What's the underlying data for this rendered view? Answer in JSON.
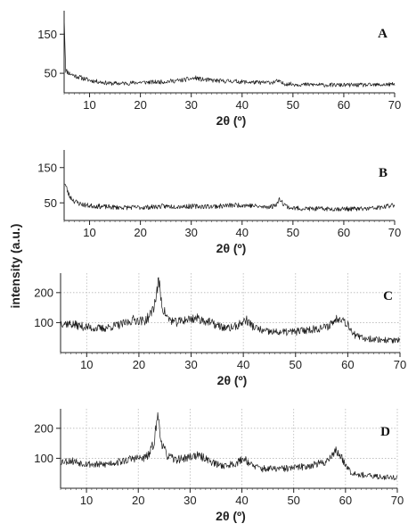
{
  "figure": {
    "ylabel": "intensity (a.u.)"
  },
  "chart_data": [
    {
      "panel": "A",
      "type": "line",
      "xlabel": "2θ (º)",
      "ylabel": "",
      "xlim": [
        5,
        70
      ],
      "ylim": [
        0,
        210
      ],
      "xticks": [
        10,
        20,
        30,
        40,
        50,
        60,
        70
      ],
      "yticks": [
        50,
        150
      ],
      "grid": false,
      "noise": 7,
      "seed": 11,
      "series": [
        {
          "x": [
            5,
            5.3,
            6,
            7,
            8,
            9,
            10,
            12,
            14,
            16,
            18,
            20,
            22,
            24,
            26,
            28,
            30,
            31,
            32,
            34,
            36,
            38,
            40,
            42,
            44,
            46,
            47,
            48,
            50,
            52,
            54,
            56,
            58,
            60,
            62,
            64,
            66,
            68,
            70
          ],
          "y": [
            200,
            58,
            50,
            44,
            40,
            36,
            32,
            28,
            24,
            24,
            25,
            27,
            27,
            28,
            30,
            32,
            36,
            38,
            34,
            32,
            30,
            30,
            28,
            27,
            26,
            27,
            30,
            24,
            22,
            21,
            21,
            20,
            20,
            20,
            20,
            20,
            20,
            21,
            22
          ]
        }
      ]
    },
    {
      "panel": "B",
      "type": "line",
      "xlabel": "2θ (º)",
      "ylabel": "",
      "xlim": [
        5,
        70
      ],
      "ylim": [
        0,
        200
      ],
      "xticks": [
        10,
        20,
        30,
        40,
        50,
        60,
        70
      ],
      "yticks": [
        50,
        150
      ],
      "grid": false,
      "noise": 8,
      "seed": 23,
      "series": [
        {
          "x": [
            5,
            5.5,
            6,
            7,
            8,
            9,
            10,
            12,
            14,
            16,
            18,
            20,
            22,
            24,
            26,
            28,
            30,
            32,
            34,
            36,
            38,
            40,
            42,
            44,
            46,
            47,
            47.5,
            48,
            49,
            50,
            52,
            54,
            56,
            58,
            60,
            62,
            64,
            66,
            68,
            70
          ],
          "y": [
            110,
            90,
            70,
            55,
            48,
            44,
            42,
            40,
            38,
            37,
            37,
            37,
            38,
            40,
            40,
            40,
            40,
            40,
            40,
            41,
            43,
            44,
            42,
            38,
            40,
            50,
            62,
            50,
            38,
            35,
            34,
            33,
            33,
            33,
            33,
            33,
            33,
            35,
            38,
            45
          ]
        }
      ]
    },
    {
      "panel": "C",
      "type": "line",
      "xlabel": "2θ (º)",
      "ylabel": "",
      "xlim": [
        5,
        70
      ],
      "ylim": [
        0,
        265
      ],
      "xticks": [
        10,
        20,
        30,
        40,
        50,
        60,
        70
      ],
      "yticks": [
        100,
        200
      ],
      "grid": true,
      "noise": 12,
      "seed": 37,
      "series": [
        {
          "x": [
            5,
            7,
            9,
            11,
            13,
            15,
            17,
            19,
            21,
            22,
            23,
            23.8,
            24.5,
            25.5,
            27,
            29,
            31,
            33,
            35,
            37,
            39,
            40.5,
            42,
            44,
            46,
            48,
            50,
            52,
            54,
            56,
            57,
            58.5,
            60,
            61.5,
            63,
            65,
            67,
            70
          ],
          "y": [
            100,
            95,
            88,
            82,
            80,
            88,
            95,
            110,
            105,
            120,
            160,
            240,
            150,
            115,
            100,
            110,
            115,
            105,
            90,
            80,
            90,
            110,
            85,
            70,
            68,
            68,
            70,
            75,
            80,
            85,
            100,
            120,
            95,
            55,
            48,
            45,
            42,
            40
          ]
        }
      ]
    },
    {
      "panel": "D",
      "type": "line",
      "xlabel": "2θ (º)",
      "ylabel": "",
      "xlim": [
        5,
        70
      ],
      "ylim": [
        0,
        265
      ],
      "xticks": [
        10,
        20,
        30,
        40,
        50,
        60,
        70
      ],
      "yticks": [
        100,
        200
      ],
      "grid": true,
      "noise": 11,
      "seed": 53,
      "series": [
        {
          "x": [
            5,
            7,
            9,
            11,
            13,
            15,
            17,
            19,
            21,
            22,
            23,
            23.8,
            24.5,
            25.5,
            27,
            29,
            31,
            33,
            35,
            37,
            39,
            40.5,
            42,
            44,
            46,
            48,
            50,
            52,
            54,
            56,
            57,
            58.2,
            59.5,
            61,
            63,
            65,
            67,
            70
          ],
          "y": [
            90,
            92,
            85,
            80,
            78,
            85,
            90,
            100,
            100,
            110,
            150,
            245,
            150,
            110,
            95,
            100,
            110,
            100,
            80,
            75,
            85,
            100,
            75,
            65,
            65,
            65,
            68,
            72,
            80,
            85,
            105,
            125,
            95,
            55,
            45,
            40,
            38,
            36
          ]
        }
      ]
    }
  ]
}
